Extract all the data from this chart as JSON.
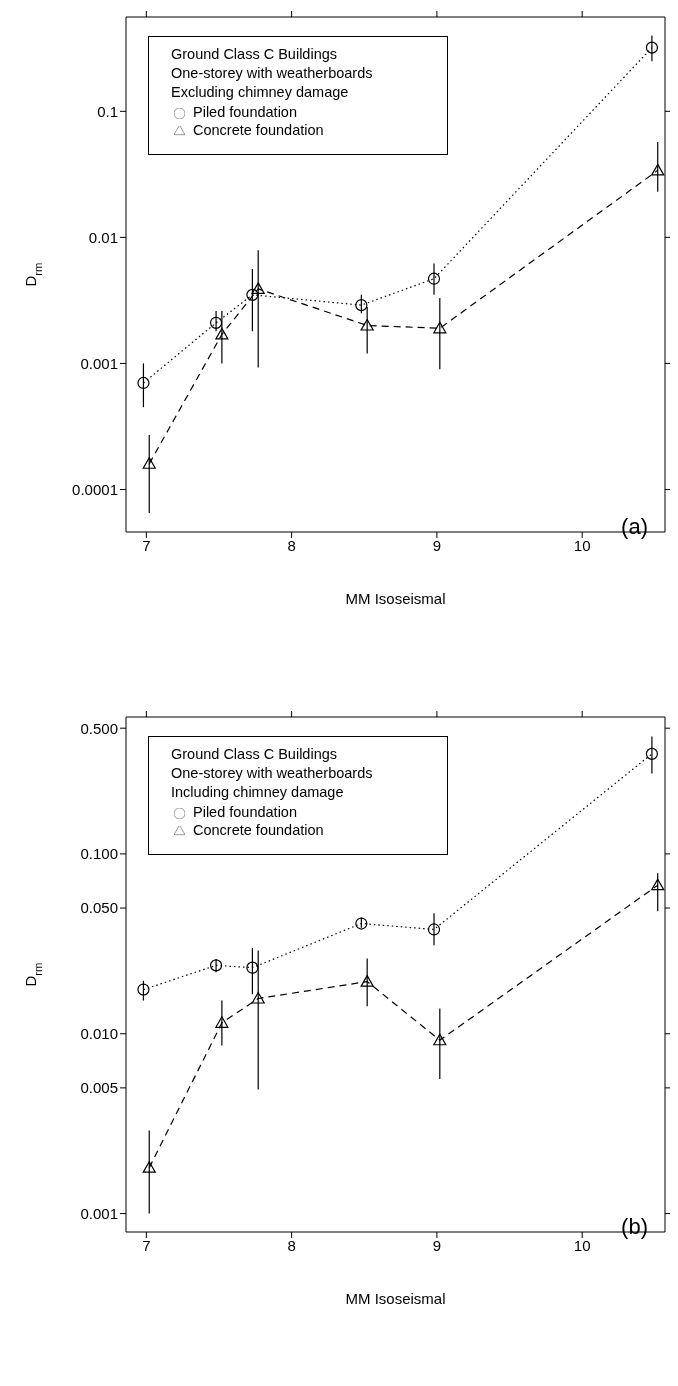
{
  "chart_data": [
    {
      "type": "line",
      "xlabel": "MM Isoseismal",
      "ylabel": "D$_{rm}$",
      "legend_title": "Ground Class C  Buildings\nOne-storey with weatherboards\nExcluding chimney damage",
      "legend": "top left",
      "log": "y",
      "grid": false,
      "xlim": [
        6.86,
        10.57
      ],
      "xticks": [
        7,
        8,
        9,
        10
      ],
      "ylim": [
        4.6e-05,
        0.56
      ],
      "yticks": [
        0.1,
        0.01,
        0.001,
        0.0001
      ],
      "annotations": [
        "(a)"
      ],
      "series": [
        {
          "name": "Piled foundation",
          "color": "#000000",
          "marker": "circle",
          "line_style": "dotted",
          "x": [
            6.98,
            7.48,
            7.73,
            8.48,
            8.98,
            10.48
          ],
          "values": [
            0.0007,
            0.0021,
            0.0035,
            0.0029,
            0.0047,
            0.32
          ],
          "errors": [
            [
              0.00045,
              0.001
            ],
            [
              0.0018,
              0.0026
            ],
            [
              0.0018,
              0.0056
            ],
            [
              0.0025,
              0.0035
            ],
            [
              0.0035,
              0.0062
            ],
            [
              0.25,
              0.4
            ]
          ]
        },
        {
          "name": "Concrete foundation",
          "color": "#000000",
          "marker": "triangle",
          "line_style": "dashed",
          "x": [
            7.02,
            7.52,
            7.77,
            8.52,
            9.02,
            10.52
          ],
          "values": [
            0.00016,
            0.0017,
            0.0039,
            0.002,
            0.0019,
            0.034
          ],
          "errors": [
            [
              6.5e-05,
              0.00027
            ],
            [
              0.001,
              0.0026
            ],
            [
              0.00093,
              0.0079
            ],
            [
              0.0012,
              0.0028
            ],
            [
              0.0009,
              0.0033
            ],
            [
              0.023,
              0.057
            ]
          ]
        }
      ]
    },
    {
      "type": "line",
      "xlabel": "MM Isoseismal",
      "ylabel": "D$_{rm}$",
      "legend_title": "Ground Class C  Buildings\nOne-storey with weatherboards\nIncluding chimney damage",
      "legend": "top left",
      "log": "y",
      "grid": false,
      "xlim": [
        6.86,
        10.57
      ],
      "xticks": [
        7,
        8,
        9,
        10
      ],
      "ylim": [
        0.00079,
        0.577
      ],
      "yticks": [
        {
          "value": 0.5,
          "label": "0.500"
        },
        {
          "value": 0.1,
          "label": "0.100"
        },
        {
          "value": 0.05,
          "label": "0.050"
        },
        {
          "value": 0.01,
          "label": "0.010"
        },
        {
          "value": 0.005,
          "label": "0.005"
        },
        {
          "value": 0.001,
          "label": "0.001"
        }
      ],
      "annotations": [
        "(b)"
      ],
      "series": [
        {
          "name": "Piled foundation",
          "color": "#000000",
          "marker": "circle",
          "line_style": "dotted",
          "x": [
            6.98,
            7.48,
            7.73,
            8.48,
            8.98,
            10.48
          ],
          "values": [
            0.0176,
            0.024,
            0.0233,
            0.041,
            0.038,
            0.36
          ],
          "errors": [
            [
              0.0153,
              0.0197
            ],
            [
              0.022,
              0.026
            ],
            [
              0.0166,
              0.03
            ],
            [
              0.0388,
              0.0443
            ],
            [
              0.031,
              0.0467
            ],
            [
              0.28,
              0.45
            ]
          ]
        },
        {
          "name": "Concrete foundation",
          "color": "#000000",
          "marker": "triangle",
          "line_style": "dashed",
          "x": [
            7.02,
            7.52,
            7.77,
            8.52,
            9.02,
            10.52
          ],
          "values": [
            0.0018,
            0.0115,
            0.0157,
            0.0195,
            0.0092,
            0.067
          ],
          "errors": [
            [
              0.001,
              0.0029
            ],
            [
              0.0086,
              0.0153
            ],
            [
              0.0049,
              0.029
            ],
            [
              0.0142,
              0.0262
            ],
            [
              0.0056,
              0.0138
            ],
            [
              0.048,
              0.078
            ]
          ]
        }
      ]
    }
  ]
}
